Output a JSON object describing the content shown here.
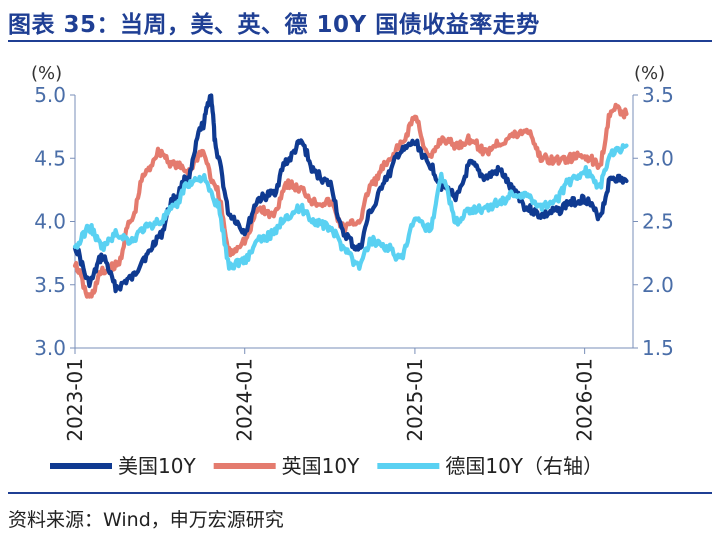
{
  "title": "图表 35：当周，美、英、德 10Y 国债收益率走势",
  "source": "资料来源：Wind，申万宏源研究",
  "chart_data": {
    "type": "line",
    "left_unit": "(%)",
    "right_unit": "(%)",
    "left_ylim": [
      3.0,
      5.0
    ],
    "right_ylim": [
      1.5,
      3.5
    ],
    "left_ticks": [
      "3.0",
      "3.5",
      "4.0",
      "4.5",
      "5.0"
    ],
    "right_ticks": [
      "1.5",
      "2.0",
      "2.5",
      "3.0",
      "3.5"
    ],
    "x_ticks": [
      "2023-01",
      "2024-01",
      "2025-01",
      "2026-01"
    ],
    "legend_position": "bottom",
    "series": [
      {
        "name": "美国10Y",
        "axis": "left",
        "color": "#0f3a91",
        "points": [
          [
            "2023-01",
            3.79
          ],
          [
            "2023-02",
            3.52
          ],
          [
            "2023-03",
            3.72
          ],
          [
            "2023-04",
            3.48
          ],
          [
            "2023-05",
            3.55
          ],
          [
            "2023-06",
            3.72
          ],
          [
            "2023-07",
            3.88
          ],
          [
            "2023-08",
            4.18
          ],
          [
            "2023-09",
            4.35
          ],
          [
            "2023-10",
            4.75
          ],
          [
            "2023-10-20",
            4.99
          ],
          [
            "2023-11",
            4.55
          ],
          [
            "2023-12",
            4.05
          ],
          [
            "2024-01",
            3.93
          ],
          [
            "2024-02",
            4.18
          ],
          [
            "2024-03",
            4.22
          ],
          [
            "2024-04",
            4.48
          ],
          [
            "2024-05",
            4.62
          ],
          [
            "2024-06",
            4.38
          ],
          [
            "2024-07",
            4.3
          ],
          [
            "2024-08",
            3.9
          ],
          [
            "2024-09",
            3.78
          ],
          [
            "2024-10",
            4.1
          ],
          [
            "2024-11",
            4.35
          ],
          [
            "2024-12",
            4.55
          ],
          [
            "2025-01",
            4.62
          ],
          [
            "2025-02",
            4.45
          ],
          [
            "2025-03",
            4.28
          ],
          [
            "2025-04",
            4.2
          ],
          [
            "2025-05",
            4.45
          ],
          [
            "2025-06",
            4.35
          ],
          [
            "2025-07",
            4.4
          ],
          [
            "2025-08",
            4.25
          ],
          [
            "2025-09",
            4.1
          ],
          [
            "2025-10",
            4.05
          ],
          [
            "2025-11",
            4.08
          ],
          [
            "2025-12",
            4.15
          ],
          [
            "2026-01",
            4.18
          ],
          [
            "2026-02",
            4.05
          ],
          [
            "2026-03",
            4.35
          ],
          [
            "2026-04",
            4.32
          ]
        ]
      },
      {
        "name": "英国10Y",
        "axis": "left",
        "color": "#e47b6e",
        "points": [
          [
            "2023-01",
            3.65
          ],
          [
            "2023-02",
            3.4
          ],
          [
            "2023-03",
            3.6
          ],
          [
            "2023-04",
            3.65
          ],
          [
            "2023-05",
            4.0
          ],
          [
            "2023-06",
            4.38
          ],
          [
            "2023-07",
            4.55
          ],
          [
            "2023-08",
            4.45
          ],
          [
            "2023-09",
            4.4
          ],
          [
            "2023-10",
            4.55
          ],
          [
            "2023-11",
            4.25
          ],
          [
            "2023-12",
            3.75
          ],
          [
            "2024-01",
            3.85
          ],
          [
            "2024-02",
            4.1
          ],
          [
            "2024-03",
            4.05
          ],
          [
            "2024-04",
            4.3
          ],
          [
            "2024-05",
            4.25
          ],
          [
            "2024-06",
            4.15
          ],
          [
            "2024-07",
            4.15
          ],
          [
            "2024-08",
            3.95
          ],
          [
            "2024-09",
            4.0
          ],
          [
            "2024-10",
            4.3
          ],
          [
            "2024-11",
            4.45
          ],
          [
            "2024-12",
            4.6
          ],
          [
            "2025-01",
            4.82
          ],
          [
            "2025-02",
            4.5
          ],
          [
            "2025-03",
            4.65
          ],
          [
            "2025-04",
            4.6
          ],
          [
            "2025-05",
            4.65
          ],
          [
            "2025-06",
            4.55
          ],
          [
            "2025-07",
            4.62
          ],
          [
            "2025-08",
            4.68
          ],
          [
            "2025-09",
            4.72
          ],
          [
            "2025-10",
            4.5
          ],
          [
            "2025-11",
            4.48
          ],
          [
            "2025-12",
            4.5
          ],
          [
            "2026-01",
            4.52
          ],
          [
            "2026-02",
            4.45
          ],
          [
            "2026-03",
            4.9
          ],
          [
            "2026-04",
            4.85
          ]
        ]
      },
      {
        "name": "德国10Y（右轴）",
        "axis": "right",
        "color": "#5ad1f2",
        "points": [
          [
            "2023-01",
            2.3
          ],
          [
            "2023-02",
            2.45
          ],
          [
            "2023-03",
            2.3
          ],
          [
            "2023-04",
            2.4
          ],
          [
            "2023-05",
            2.35
          ],
          [
            "2023-06",
            2.45
          ],
          [
            "2023-07",
            2.5
          ],
          [
            "2023-08",
            2.6
          ],
          [
            "2023-09",
            2.8
          ],
          [
            "2023-10",
            2.85
          ],
          [
            "2023-11",
            2.65
          ],
          [
            "2023-12",
            2.15
          ],
          [
            "2024-01",
            2.2
          ],
          [
            "2024-02",
            2.35
          ],
          [
            "2024-03",
            2.4
          ],
          [
            "2024-04",
            2.55
          ],
          [
            "2024-05",
            2.6
          ],
          [
            "2024-06",
            2.5
          ],
          [
            "2024-07",
            2.45
          ],
          [
            "2024-08",
            2.3
          ],
          [
            "2024-09",
            2.15
          ],
          [
            "2024-10",
            2.35
          ],
          [
            "2024-11",
            2.3
          ],
          [
            "2024-12",
            2.2
          ],
          [
            "2025-01",
            2.5
          ],
          [
            "2025-02",
            2.45
          ],
          [
            "2025-03",
            2.85
          ],
          [
            "2025-04",
            2.5
          ],
          [
            "2025-05",
            2.6
          ],
          [
            "2025-06",
            2.6
          ],
          [
            "2025-07",
            2.65
          ],
          [
            "2025-08",
            2.72
          ],
          [
            "2025-09",
            2.7
          ],
          [
            "2025-10",
            2.62
          ],
          [
            "2025-11",
            2.68
          ],
          [
            "2025-12",
            2.82
          ],
          [
            "2026-01",
            2.9
          ],
          [
            "2026-02",
            2.78
          ],
          [
            "2026-03",
            3.05
          ],
          [
            "2026-04",
            3.1
          ]
        ]
      }
    ]
  }
}
